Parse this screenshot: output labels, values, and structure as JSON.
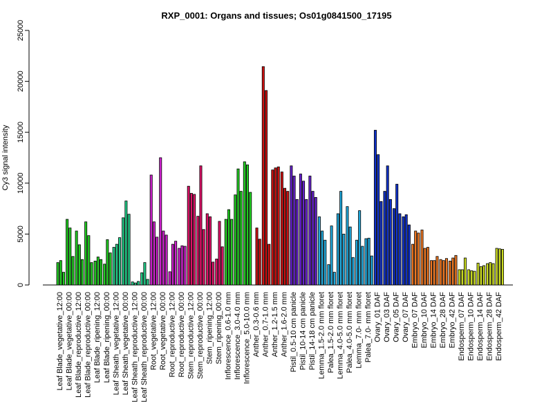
{
  "chart_data": {
    "type": "bar",
    "title": "RXP_0001: Organs and tissues; Os01g0841500_17195",
    "xlabel": "",
    "ylabel": "Cy3 signal intensity",
    "ylim": [
      0,
      25000
    ],
    "yticks": [
      0,
      5000,
      10000,
      15000,
      20000,
      25000
    ],
    "grid": false,
    "legend": "none",
    "bars_per_group": 3,
    "groups": [
      {
        "label": "Leaf Blade_vegetative_12:00",
        "color": "#22cc22",
        "values": [
          2200,
          2400,
          1250
        ]
      },
      {
        "label": "Leaf Blade_vegetative_00:00",
        "color": "#22cc22",
        "values": [
          6450,
          5600,
          2800
        ]
      },
      {
        "label": "Leaf Blade_reproductive_12:00",
        "color": "#22cc22",
        "values": [
          5300,
          3950,
          2500
        ]
      },
      {
        "label": "Leaf Blade_reproductive_00:00",
        "color": "#22cc22",
        "values": [
          6200,
          4850,
          2200
        ]
      },
      {
        "label": "Leaf Blade_ripening_12:00",
        "color": "#22cc22",
        "values": [
          2350,
          2750,
          2500
        ]
      },
      {
        "label": "Leaf Blade_ripening_00:00",
        "color": "#22cc22",
        "values": [
          2050,
          4450,
          3150
        ]
      },
      {
        "label": "Leaf Sheath_vegetative_12:00",
        "color": "#22cc88",
        "values": [
          3700,
          4000,
          4650
        ]
      },
      {
        "label": "Leaf Sheath_vegetative_00:00",
        "color": "#22cc88",
        "values": [
          6600,
          8250,
          6950
        ]
      },
      {
        "label": "Leaf Sheath_reproductive_12:00",
        "color": "#22cc88",
        "values": [
          300,
          200,
          350
        ]
      },
      {
        "label": "Leaf Sheath_reproductive_00:00",
        "color": "#22cc88",
        "values": [
          1200,
          2200,
          550
        ]
      },
      {
        "label": "Root_vegetative_12:00",
        "color": "#cc22cc",
        "values": [
          10800,
          6200,
          4700
        ]
      },
      {
        "label": "Root_vegetative_00:00",
        "color": "#cc22cc",
        "values": [
          12500,
          5300,
          4900
        ]
      },
      {
        "label": "Root_reproductive_12:00",
        "color": "#cc22cc",
        "values": [
          1300,
          4000,
          4300
        ]
      },
      {
        "label": "Root_reproductive_00:00",
        "color": "#cc22cc",
        "values": [
          3600,
          3850,
          3800
        ]
      },
      {
        "label": "Stem_reproductive_12:00",
        "color": "#dd1166",
        "values": [
          9700,
          9000,
          8900
        ]
      },
      {
        "label": "Stem_reproductive_00:00",
        "color": "#dd1166",
        "values": [
          6750,
          11700,
          5450
        ]
      },
      {
        "label": "Stem_ripening_12:00",
        "color": "#dd1166",
        "values": [
          7000,
          6700,
          2250
        ]
      },
      {
        "label": "Stem_ripening_00:00",
        "color": "#dd1166",
        "values": [
          2550,
          6250,
          3750
        ]
      },
      {
        "label": "Inflorescence_0.6-1.0 mm",
        "color": "#22cc22",
        "values": [
          6450,
          7400,
          6450
        ]
      },
      {
        "label": "Inflorescence_3.0-4.0 mm",
        "color": "#22cc22",
        "values": [
          8850,
          11400,
          9200
        ]
      },
      {
        "label": "Inflorescence_5.0-10.0 mm",
        "color": "#22cc22",
        "values": [
          12100,
          11800,
          9100
        ]
      },
      {
        "label": "Anther_0.3-0.6 mm",
        "color": "#cc1111",
        "values": [
          0,
          5600,
          4500
        ]
      },
      {
        "label": "Anther_0.7-1.0 mm",
        "color": "#cc1111",
        "values": [
          21450,
          19100,
          4000
        ]
      },
      {
        "label": "Anther_1.2-1.5 mm",
        "color": "#cc1111",
        "values": [
          11300,
          11500,
          11600
        ]
      },
      {
        "label": "Anther_1.6-2.0 mm",
        "color": "#cc1111",
        "values": [
          11100,
          9500,
          9200
        ]
      },
      {
        "label": "Pistil_0.5-10 cm panicle",
        "color": "#6622cc",
        "values": [
          11700,
          10700,
          8400
        ]
      },
      {
        "label": "Pistil_10-14 cm panicle",
        "color": "#6622cc",
        "values": [
          10900,
          10200,
          8400
        ]
      },
      {
        "label": "Pistil_14-18 cm panicle",
        "color": "#6622cc",
        "values": [
          10700,
          9200,
          8600
        ]
      },
      {
        "label": "Lemma_1.5-2.0 mm floret",
        "color": "#22aadd",
        "values": [
          6700,
          5300,
          4400
        ]
      },
      {
        "label": "Palea_1.5-2.0 mm floret",
        "color": "#22aadd",
        "values": [
          2000,
          5800,
          1250
        ]
      },
      {
        "label": "Lemma_4.0-5.0 mm floret",
        "color": "#22aadd",
        "values": [
          7000,
          9200,
          5000
        ]
      },
      {
        "label": "Palea_4.0-5.0 mm floret",
        "color": "#22aadd",
        "values": [
          7700,
          5700,
          2700
        ]
      },
      {
        "label": "Lemma_7.0- mm floret",
        "color": "#22aadd",
        "values": [
          4400,
          7300,
          3800
        ]
      },
      {
        "label": "Palea_7.0- mm floret",
        "color": "#22aadd",
        "values": [
          4550,
          4600,
          2850
        ]
      },
      {
        "label": "Ovary_01 DAF",
        "color": "#1133cc",
        "values": [
          15200,
          12800,
          8200
        ]
      },
      {
        "label": "Ovary_03 DAF",
        "color": "#1133cc",
        "values": [
          9200,
          11700,
          8400
        ]
      },
      {
        "label": "Ovary_05 DAF",
        "color": "#1133cc",
        "values": [
          7500,
          9900,
          7000
        ]
      },
      {
        "label": "Ovary_07 DAF",
        "color": "#1133cc",
        "values": [
          6700,
          6900,
          5900
        ]
      },
      {
        "label": "Embryo_07 DAF",
        "color": "#ee7722",
        "values": [
          4000,
          5300,
          5100
        ]
      },
      {
        "label": "Embryo_10 DAF",
        "color": "#ee7722",
        "values": [
          5400,
          3600,
          3700
        ]
      },
      {
        "label": "Embryo_14 DAF",
        "color": "#ee7722",
        "values": [
          2400,
          2400,
          2800
        ]
      },
      {
        "label": "Embryo_28 DAF",
        "color": "#ee7722",
        "values": [
          2500,
          2400,
          2600
        ]
      },
      {
        "label": "Embryo_42 DAF",
        "color": "#ee7722",
        "values": [
          2350,
          2650,
          2900
        ]
      },
      {
        "label": "Endosperm_07 DAF",
        "color": "#ccdd22",
        "values": [
          1500,
          1500,
          2650
        ]
      },
      {
        "label": "Endosperm_10 DAF",
        "color": "#ccdd22",
        "values": [
          1500,
          1400,
          1350
        ]
      },
      {
        "label": "Endosperm_14 DAF",
        "color": "#ccdd22",
        "values": [
          2150,
          1800,
          1900
        ]
      },
      {
        "label": "Endosperm_28 DAF",
        "color": "#ccdd22",
        "values": [
          2100,
          2200,
          2100
        ]
      },
      {
        "label": "Endosperm_42 DAF",
        "color": "#ccdd22",
        "values": [
          3600,
          3550,
          3500
        ]
      }
    ]
  }
}
